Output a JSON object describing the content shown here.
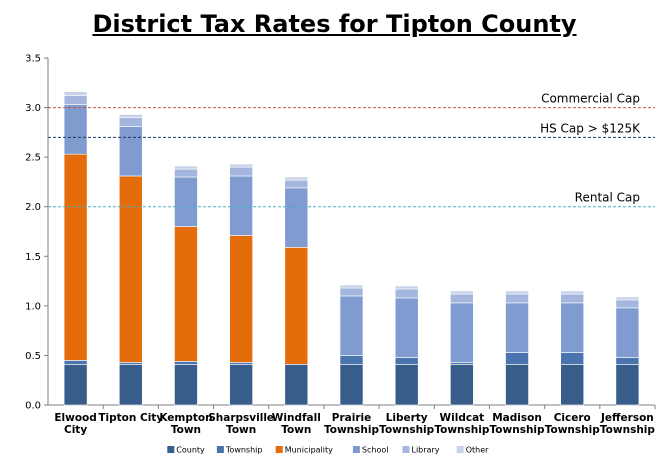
{
  "chart_data": {
    "type": "bar",
    "stacked": true,
    "title": "District Tax Rates for Tipton County",
    "xlabel": "",
    "ylabel": "",
    "ylim": [
      0,
      3.5
    ],
    "yticks": [
      "0.0",
      "0.5",
      "1.0",
      "1.5",
      "2.0",
      "2.5",
      "3.0",
      "3.5"
    ],
    "grid": false,
    "legend_position": "bottom",
    "categories": [
      [
        "Elwood",
        "City"
      ],
      [
        "Tipton City"
      ],
      [
        "Kempton",
        "Town"
      ],
      [
        "Sharpsville",
        "Town"
      ],
      [
        "Windfall",
        "Town"
      ],
      [
        "Prairie",
        "Township"
      ],
      [
        "Liberty",
        "Township"
      ],
      [
        "Wildcat",
        "Township"
      ],
      [
        "Madison",
        "Township"
      ],
      [
        "Cicero",
        "Township"
      ],
      [
        "Jefferson",
        "Township"
      ]
    ],
    "series": [
      {
        "name": "County",
        "color": "#385d8a",
        "values": [
          0.41,
          0.41,
          0.41,
          0.41,
          0.41,
          0.41,
          0.41,
          0.41,
          0.41,
          0.41,
          0.41
        ]
      },
      {
        "name": "Township",
        "color": "#4a74ad",
        "values": [
          0.04,
          0.02,
          0.03,
          0.02,
          0.0,
          0.09,
          0.07,
          0.02,
          0.12,
          0.12,
          0.07
        ]
      },
      {
        "name": "Municipality",
        "color": "#e46c0a",
        "values": [
          2.08,
          1.88,
          1.36,
          1.28,
          1.18,
          0.0,
          0.0,
          0.0,
          0.0,
          0.0,
          0.0
        ]
      },
      {
        "name": "School",
        "color": "#7f9bd0",
        "values": [
          0.5,
          0.5,
          0.5,
          0.6,
          0.6,
          0.6,
          0.6,
          0.6,
          0.5,
          0.5,
          0.5
        ]
      },
      {
        "name": "Library",
        "color": "#a4b6dd",
        "values": [
          0.09,
          0.09,
          0.08,
          0.09,
          0.08,
          0.08,
          0.09,
          0.09,
          0.09,
          0.09,
          0.08
        ]
      },
      {
        "name": "Other",
        "color": "#c7d1e8",
        "values": [
          0.04,
          0.03,
          0.03,
          0.03,
          0.03,
          0.03,
          0.03,
          0.03,
          0.03,
          0.03,
          0.03
        ]
      }
    ],
    "reference_lines": [
      {
        "label": "Commercial Cap",
        "value": 3.0,
        "color": "#c0504d"
      },
      {
        "label": "HS Cap > $125K",
        "value": 2.7,
        "color": "#1f3864"
      },
      {
        "label": "Rental Cap",
        "value": 2.0,
        "color": "#4bacc6"
      }
    ]
  }
}
